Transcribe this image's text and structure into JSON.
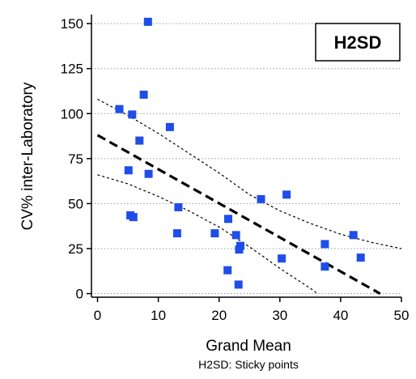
{
  "chart_data": {
    "type": "scatter",
    "badge": "H2SD",
    "subtitle": "H2SD: Sticky points",
    "xlabel": "Grand Mean",
    "ylabel": "CV% inter-Laboratory",
    "xlim": [
      -1,
      50
    ],
    "ylim": [
      -2,
      155
    ],
    "x_ticks": [
      0,
      10,
      20,
      30,
      40,
      50
    ],
    "y_ticks": [
      0,
      25,
      50,
      75,
      100,
      125,
      150
    ],
    "grid": "horizontal dotted",
    "marker_color": "#1f4de8",
    "points": [
      {
        "x": 8.3,
        "y": 151
      },
      {
        "x": 3.6,
        "y": 102.5
      },
      {
        "x": 5.7,
        "y": 99.5
      },
      {
        "x": 7.6,
        "y": 110.5
      },
      {
        "x": 6.9,
        "y": 85
      },
      {
        "x": 11.9,
        "y": 92.5
      },
      {
        "x": 5.1,
        "y": 68.5
      },
      {
        "x": 8.4,
        "y": 66.5
      },
      {
        "x": 5.4,
        "y": 43.5
      },
      {
        "x": 5.9,
        "y": 42.5
      },
      {
        "x": 13.3,
        "y": 48
      },
      {
        "x": 13.1,
        "y": 33.5
      },
      {
        "x": 19.3,
        "y": 33.5
      },
      {
        "x": 21.5,
        "y": 41.5
      },
      {
        "x": 22.8,
        "y": 32.5
      },
      {
        "x": 23.5,
        "y": 26.5
      },
      {
        "x": 23.3,
        "y": 24.5
      },
      {
        "x": 21.4,
        "y": 13
      },
      {
        "x": 23.2,
        "y": 5
      },
      {
        "x": 26.9,
        "y": 52.5
      },
      {
        "x": 31.1,
        "y": 55
      },
      {
        "x": 30.3,
        "y": 19.5
      },
      {
        "x": 37.4,
        "y": 27.5
      },
      {
        "x": 37.4,
        "y": 15
      },
      {
        "x": 42.1,
        "y": 32.5
      },
      {
        "x": 43.3,
        "y": 20
      }
    ],
    "fit": {
      "x": [
        0,
        46.5
      ],
      "y": [
        88,
        0
      ]
    },
    "upper_band": {
      "x": [
        0,
        5,
        10,
        15,
        20,
        25,
        30,
        35,
        40,
        45,
        50
      ],
      "y": [
        108,
        99,
        89,
        78,
        67,
        55,
        46,
        39,
        33,
        28.5,
        25
      ]
    },
    "lower_band": {
      "x": [
        0,
        5,
        10,
        15,
        20,
        25,
        30,
        35,
        36.2
      ],
      "y": [
        66,
        61,
        54,
        46,
        37,
        26,
        14,
        3,
        0
      ]
    }
  }
}
